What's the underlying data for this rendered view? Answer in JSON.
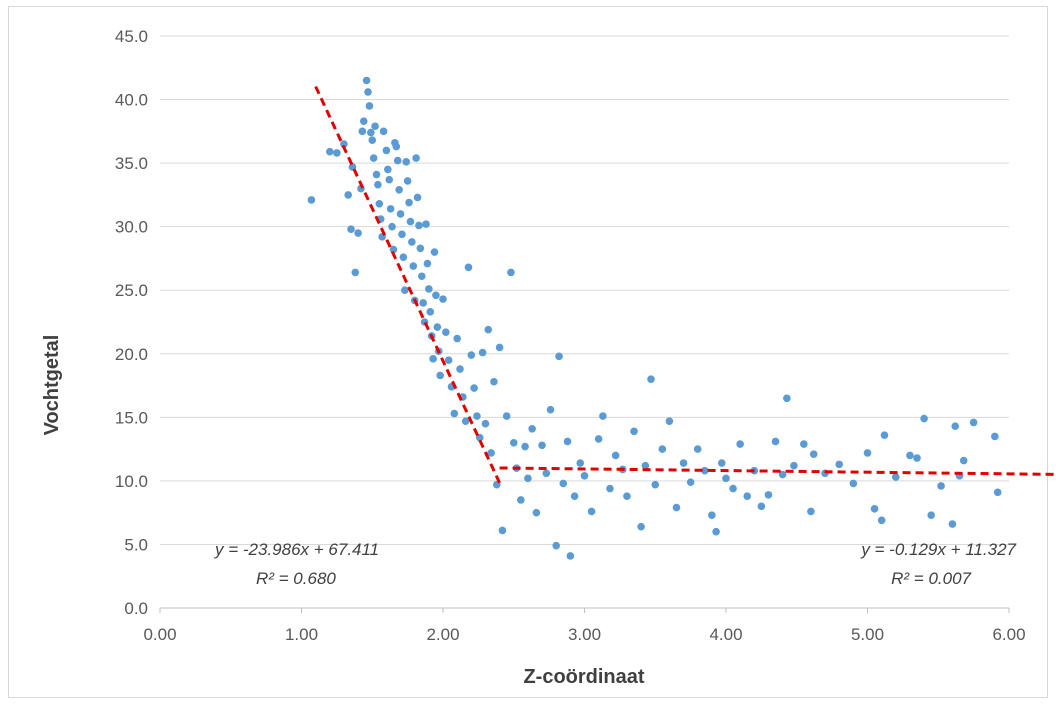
{
  "chart_data": {
    "type": "scatter",
    "xlabel": "Z-coördinaat",
    "ylabel": "Vochtgetal",
    "xlim": [
      0,
      6
    ],
    "ylim": [
      0,
      45
    ],
    "x_ticks": [
      "0.00",
      "1.00",
      "2.00",
      "3.00",
      "4.00",
      "5.00",
      "6.00"
    ],
    "y_ticks": [
      "0.0",
      "5.0",
      "10.0",
      "15.0",
      "20.0",
      "25.0",
      "30.0",
      "35.0",
      "40.0",
      "45.0"
    ],
    "grid": "horizontal",
    "point_color": "#5b9bd5",
    "trend_color": "#e00000",
    "trendlines": [
      {
        "slope": -23.986,
        "intercept": 67.411,
        "x_range": [
          1.1,
          2.4
        ],
        "equation": "y = -23.986x + 67.411",
        "r2": "R² = 0.680"
      },
      {
        "slope": -0.129,
        "intercept": 11.327,
        "x_range": [
          2.4,
          6.4
        ],
        "equation": "y = -0.129x + 11.327",
        "r2": "R² = 0.007"
      }
    ],
    "points": [
      [
        1.07,
        32.1
      ],
      [
        1.2,
        35.9
      ],
      [
        1.25,
        35.8
      ],
      [
        1.3,
        36.5
      ],
      [
        1.33,
        32.5
      ],
      [
        1.35,
        29.8
      ],
      [
        1.36,
        34.7
      ],
      [
        1.38,
        26.4
      ],
      [
        1.4,
        29.5
      ],
      [
        1.42,
        33.0
      ],
      [
        1.43,
        37.5
      ],
      [
        1.44,
        38.3
      ],
      [
        1.46,
        41.5
      ],
      [
        1.47,
        40.6
      ],
      [
        1.48,
        39.5
      ],
      [
        1.49,
        37.4
      ],
      [
        1.5,
        36.8
      ],
      [
        1.51,
        35.4
      ],
      [
        1.52,
        37.9
      ],
      [
        1.53,
        34.1
      ],
      [
        1.54,
        33.3
      ],
      [
        1.55,
        31.8
      ],
      [
        1.56,
        30.6
      ],
      [
        1.57,
        29.2
      ],
      [
        1.58,
        37.5
      ],
      [
        1.6,
        36.0
      ],
      [
        1.61,
        34.5
      ],
      [
        1.62,
        33.7
      ],
      [
        1.63,
        31.4
      ],
      [
        1.64,
        30.0
      ],
      [
        1.65,
        28.2
      ],
      [
        1.66,
        36.6
      ],
      [
        1.67,
        36.3
      ],
      [
        1.68,
        35.2
      ],
      [
        1.69,
        32.9
      ],
      [
        1.7,
        31.0
      ],
      [
        1.71,
        29.4
      ],
      [
        1.72,
        27.6
      ],
      [
        1.73,
        25.0
      ],
      [
        1.74,
        35.1
      ],
      [
        1.75,
        33.6
      ],
      [
        1.76,
        31.9
      ],
      [
        1.77,
        30.4
      ],
      [
        1.78,
        28.8
      ],
      [
        1.79,
        26.9
      ],
      [
        1.8,
        24.2
      ],
      [
        1.81,
        35.4
      ],
      [
        1.82,
        32.3
      ],
      [
        1.83,
        30.1
      ],
      [
        1.84,
        28.3
      ],
      [
        1.85,
        26.1
      ],
      [
        1.86,
        24.0
      ],
      [
        1.87,
        22.5
      ],
      [
        1.88,
        30.2
      ],
      [
        1.89,
        27.1
      ],
      [
        1.9,
        25.1
      ],
      [
        1.91,
        23.3
      ],
      [
        1.92,
        21.4
      ],
      [
        1.93,
        19.6
      ],
      [
        1.94,
        28.0
      ],
      [
        1.95,
        24.6
      ],
      [
        1.96,
        22.1
      ],
      [
        1.97,
        20.2
      ],
      [
        1.98,
        18.3
      ],
      [
        2.0,
        24.3
      ],
      [
        2.02,
        21.7
      ],
      [
        2.04,
        19.5
      ],
      [
        2.06,
        17.4
      ],
      [
        2.08,
        15.3
      ],
      [
        2.1,
        21.2
      ],
      [
        2.12,
        18.8
      ],
      [
        2.14,
        16.6
      ],
      [
        2.16,
        14.7
      ],
      [
        2.18,
        26.8
      ],
      [
        2.2,
        19.9
      ],
      [
        2.22,
        17.3
      ],
      [
        2.24,
        15.1
      ],
      [
        2.26,
        13.4
      ],
      [
        2.28,
        20.1
      ],
      [
        2.3,
        14.5
      ],
      [
        2.32,
        21.9
      ],
      [
        2.34,
        12.2
      ],
      [
        2.36,
        17.8
      ],
      [
        2.38,
        9.7
      ],
      [
        2.4,
        20.5
      ],
      [
        2.42,
        6.1
      ],
      [
        2.45,
        15.1
      ],
      [
        2.48,
        26.4
      ],
      [
        2.5,
        13.0
      ],
      [
        2.52,
        11.0
      ],
      [
        2.55,
        8.5
      ],
      [
        2.58,
        12.7
      ],
      [
        2.6,
        10.2
      ],
      [
        2.63,
        14.1
      ],
      [
        2.66,
        7.5
      ],
      [
        2.7,
        12.8
      ],
      [
        2.73,
        10.6
      ],
      [
        2.76,
        15.6
      ],
      [
        2.8,
        4.9
      ],
      [
        2.82,
        19.8
      ],
      [
        2.85,
        9.8
      ],
      [
        2.88,
        13.1
      ],
      [
        2.9,
        4.1
      ],
      [
        2.93,
        8.8
      ],
      [
        2.97,
        11.4
      ],
      [
        3.0,
        10.4
      ],
      [
        3.05,
        7.6
      ],
      [
        3.1,
        13.3
      ],
      [
        3.13,
        15.1
      ],
      [
        3.18,
        9.4
      ],
      [
        3.22,
        12.0
      ],
      [
        3.27,
        10.9
      ],
      [
        3.3,
        8.8
      ],
      [
        3.35,
        13.9
      ],
      [
        3.4,
        6.4
      ],
      [
        3.43,
        11.2
      ],
      [
        3.47,
        18.0
      ],
      [
        3.5,
        9.7
      ],
      [
        3.55,
        12.5
      ],
      [
        3.6,
        14.7
      ],
      [
        3.65,
        7.9
      ],
      [
        3.7,
        11.4
      ],
      [
        3.75,
        9.9
      ],
      [
        3.8,
        12.5
      ],
      [
        3.85,
        10.8
      ],
      [
        3.9,
        7.3
      ],
      [
        3.93,
        6.0
      ],
      [
        3.97,
        11.4
      ],
      [
        4.0,
        10.2
      ],
      [
        4.05,
        9.4
      ],
      [
        4.1,
        12.9
      ],
      [
        4.15,
        8.8
      ],
      [
        4.2,
        10.8
      ],
      [
        4.25,
        8.0
      ],
      [
        4.3,
        8.9
      ],
      [
        4.35,
        13.1
      ],
      [
        4.4,
        10.5
      ],
      [
        4.43,
        16.5
      ],
      [
        4.48,
        11.2
      ],
      [
        4.55,
        12.9
      ],
      [
        4.6,
        7.6
      ],
      [
        4.62,
        12.1
      ],
      [
        4.7,
        10.6
      ],
      [
        4.8,
        11.3
      ],
      [
        4.9,
        9.8
      ],
      [
        5.0,
        12.2
      ],
      [
        5.05,
        7.8
      ],
      [
        5.1,
        6.9
      ],
      [
        5.12,
        13.6
      ],
      [
        5.2,
        10.3
      ],
      [
        5.3,
        12.0
      ],
      [
        5.35,
        11.8
      ],
      [
        5.4,
        14.9
      ],
      [
        5.45,
        7.3
      ],
      [
        5.52,
        9.6
      ],
      [
        5.6,
        6.6
      ],
      [
        5.62,
        14.3
      ],
      [
        5.65,
        10.4
      ],
      [
        5.68,
        11.6
      ],
      [
        5.75,
        14.6
      ],
      [
        5.9,
        13.5
      ],
      [
        5.92,
        9.1
      ]
    ]
  }
}
